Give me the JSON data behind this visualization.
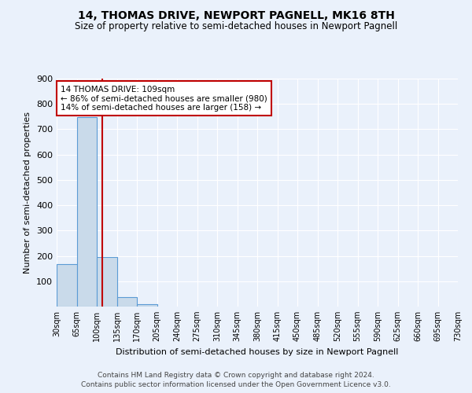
{
  "title": "14, THOMAS DRIVE, NEWPORT PAGNELL, MK16 8TH",
  "subtitle": "Size of property relative to semi-detached houses in Newport Pagnell",
  "xlabel": "Distribution of semi-detached houses by size in Newport Pagnell",
  "ylabel": "Number of semi-detached properties",
  "footnote1": "Contains HM Land Registry data © Crown copyright and database right 2024.",
  "footnote2": "Contains public sector information licensed under the Open Government Licence v3.0.",
  "property_size": 109,
  "property_label": "14 THOMAS DRIVE: 109sqm",
  "pct_smaller": 86,
  "pct_smaller_count": 980,
  "pct_larger": 14,
  "pct_larger_count": 158,
  "bin_edges": [
    30,
    65,
    100,
    135,
    170,
    205,
    240,
    275,
    310,
    345,
    380,
    415,
    450,
    485,
    520,
    555,
    590,
    625,
    660,
    695,
    730
  ],
  "bin_heights": [
    168,
    748,
    197,
    38,
    9,
    0,
    0,
    0,
    0,
    0,
    0,
    0,
    0,
    0,
    0,
    0,
    0,
    0,
    0,
    0
  ],
  "bar_color": "#c9daea",
  "bar_edge_color": "#5b9bd5",
  "vline_x": 109,
  "vline_color": "#c00000",
  "annotation_box_color": "#c00000",
  "background_color": "#eaf1fb",
  "grid_color": "#ffffff",
  "ylim": [
    0,
    900
  ],
  "yticks": [
    0,
    100,
    200,
    300,
    400,
    500,
    600,
    700,
    800,
    900
  ]
}
